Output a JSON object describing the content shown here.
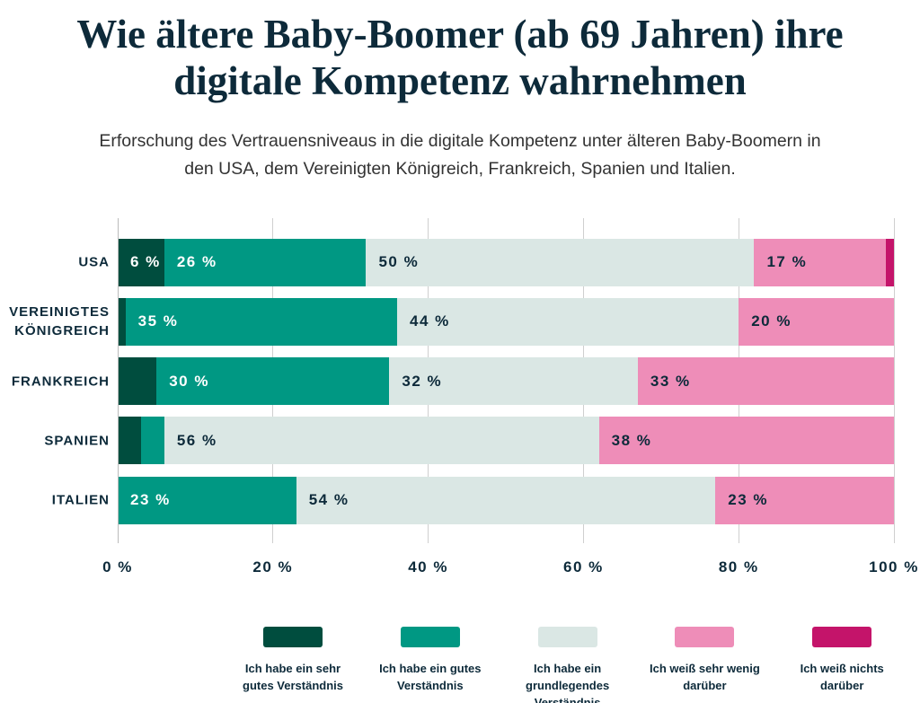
{
  "chart_data": {
    "type": "bar",
    "orientation": "horizontal",
    "stacked": true,
    "title": "Wie ältere Baby-Boomer (ab 69 Jahren) ihre digitale Kompetenz wahrnehmen",
    "subtitle": "Erforschung des Vertrauensniveaus in die digitale Kompetenz unter älteren Baby-Boomern in den USA, dem Vereinigten Königreich, Frankreich, Spanien und Italien.",
    "categories": [
      "USA",
      "VEREINIGTES KÖNIGREICH",
      "FRANKREICH",
      "SPANIEN",
      "ITALIEN"
    ],
    "series": [
      {
        "name": "Ich habe ein sehr gutes Verständnis",
        "color": "#004d3e",
        "values": [
          6,
          1,
          5,
          3,
          0
        ],
        "value_labels": [
          "6 %",
          null,
          null,
          null,
          null
        ]
      },
      {
        "name": "Ich habe ein gutes Verständnis",
        "color": "#009883",
        "values": [
          26,
          35,
          30,
          3,
          23
        ],
        "value_labels": [
          "26 %",
          "35 %",
          "30 %",
          null,
          "23 %"
        ]
      },
      {
        "name": "Ich habe ein grundlegendes Verständnis",
        "color": "#dae7e4",
        "values": [
          50,
          44,
          32,
          56,
          54
        ],
        "value_labels": [
          "50 %",
          "44 %",
          "32 %",
          "56 %",
          "54 %"
        ]
      },
      {
        "name": "Ich weiß sehr wenig darüber",
        "color": "#ee8db8",
        "values": [
          17,
          20,
          33,
          38,
          23
        ],
        "value_labels": [
          "17 %",
          "20 %",
          "33 %",
          "38 %",
          "23 %"
        ]
      },
      {
        "name": "Ich weiß nichts darüber",
        "color": "#c4146a",
        "values": [
          1,
          0,
          0,
          0,
          0
        ],
        "value_labels": [
          null,
          null,
          null,
          null,
          null
        ]
      }
    ],
    "xlim": [
      0,
      100
    ],
    "xticks": [
      {
        "value": 0,
        "label": "0 %"
      },
      {
        "value": 20,
        "label": "20 %"
      },
      {
        "value": 40,
        "label": "40 %"
      },
      {
        "value": 60,
        "label": "60 %"
      },
      {
        "value": 80,
        "label": "80 %"
      },
      {
        "value": 100,
        "label": "100 %"
      }
    ],
    "grid": true,
    "legend": "bottom"
  }
}
